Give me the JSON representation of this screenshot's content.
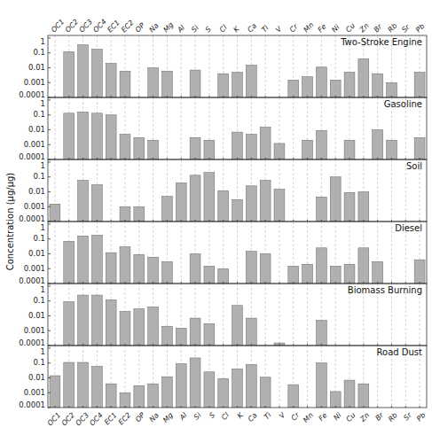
{
  "chart_data": [
    {
      "type": "bar",
      "title": "Two-Stroke Engine",
      "ylabel": "Concentration (μg/μg)",
      "categories": [
        "OC1",
        "OC2",
        "OC3",
        "OC4",
        "EC1",
        "EC2",
        "OP",
        "Na",
        "Mg",
        "Al",
        "Si",
        "S",
        "Cl",
        "K",
        "Ca",
        "Ti",
        "V",
        "Cr",
        "Mn",
        "Fe",
        "Ni",
        "Cu",
        "Zn",
        "Br",
        "Rb",
        "Sr",
        "Pb"
      ],
      "values": [
        null,
        0.12,
        0.35,
        0.18,
        0.02,
        0.006,
        null,
        0.01,
        0.006,
        null,
        0.007,
        null,
        0.004,
        0.005,
        0.015,
        null,
        null,
        0.0015,
        0.0025,
        0.011,
        0.0015,
        0.005,
        0.04,
        0.004,
        0.001,
        null,
        0.005
      ],
      "color": "#B0B0B0",
      "log": "y",
      "ylim": [
        0.0001,
        1.5
      ],
      "yticks": [
        0.0001,
        0.001,
        0.01,
        0.1,
        1
      ],
      "grid": true
    },
    {
      "type": "bar",
      "title": "Gasoline",
      "categories": [
        "OC1",
        "OC2",
        "OC3",
        "OC4",
        "EC1",
        "EC2",
        "OP",
        "Na",
        "Mg",
        "Al",
        "Si",
        "S",
        "Cl",
        "K",
        "Ca",
        "Ti",
        "V",
        "Cr",
        "Mn",
        "Fe",
        "Ni",
        "Cu",
        "Zn",
        "Br",
        "Rb",
        "Sr",
        "Pb"
      ],
      "values": [
        null,
        0.13,
        0.16,
        0.13,
        0.1,
        0.005,
        0.003,
        0.002,
        null,
        null,
        0.003,
        0.002,
        null,
        0.007,
        0.005,
        0.015,
        0.0012,
        null,
        0.002,
        0.009,
        null,
        0.002,
        null,
        0.01,
        0.002,
        null,
        0.003
      ],
      "color": "#B0B0B0",
      "log": "y",
      "ylim": [
        0.0001,
        1.5
      ],
      "yticks": [
        0.0001,
        0.001,
        0.01,
        0.1,
        1
      ],
      "grid": true,
      "tick_labels": "y"
    },
    {
      "type": "bar",
      "title": "Soil",
      "categories": [
        "OC1",
        "OC2",
        "OC3",
        "OC4",
        "EC1",
        "EC2",
        "OP",
        "Na",
        "Mg",
        "Al",
        "Si",
        "S",
        "Cl",
        "K",
        "Ca",
        "Ti",
        "V",
        "Cr",
        "Mn",
        "Fe",
        "Ni",
        "Cu",
        "Zn",
        "Br",
        "Rb",
        "Sr",
        "Pb"
      ],
      "values": [
        0.0015,
        null,
        0.06,
        0.03,
        null,
        0.001,
        0.001,
        null,
        0.005,
        0.04,
        0.13,
        0.2,
        0.012,
        0.003,
        0.025,
        0.06,
        0.015,
        null,
        null,
        0.0045,
        0.1,
        0.009,
        0.01,
        null,
        null,
        null,
        null
      ],
      "color": "#B0B0B0",
      "log": "y",
      "ylim": [
        0.0001,
        1.5
      ],
      "yticks": [
        0.0001,
        0.001,
        0.01,
        0.1,
        1
      ],
      "grid": true,
      "tick_labels": "y"
    },
    {
      "type": "bar",
      "title": "Diesel",
      "categories": [
        "OC1",
        "OC2",
        "OC3",
        "OC4",
        "EC1",
        "EC2",
        "OP",
        "Na",
        "Mg",
        "Al",
        "Si",
        "S",
        "Cl",
        "K",
        "Ca",
        "Ti",
        "V",
        "Cr",
        "Mn",
        "Fe",
        "Ni",
        "Cu",
        "Zn",
        "Br",
        "Rb",
        "Sr",
        "Pb"
      ],
      "values": [
        null,
        0.07,
        0.16,
        0.18,
        0.012,
        0.03,
        0.009,
        0.006,
        0.003,
        null,
        0.01,
        0.0015,
        0.001,
        null,
        0.015,
        0.01,
        null,
        0.0015,
        0.002,
        0.025,
        0.0015,
        0.002,
        0.025,
        0.003,
        null,
        null,
        0.004
      ],
      "color": "#B0B0B0",
      "log": "y",
      "ylim": [
        0.0001,
        1.5
      ],
      "yticks": [
        0.0001,
        0.001,
        0.01,
        0.1,
        1
      ],
      "grid": true,
      "tick_labels": "y"
    },
    {
      "type": "bar",
      "title": "Biomass Burning",
      "categories": [
        "OC1",
        "OC2",
        "OC3",
        "OC4",
        "EC1",
        "EC2",
        "OP",
        "Na",
        "Mg",
        "Al",
        "Si",
        "S",
        "Cl",
        "K",
        "Ca",
        "Ti",
        "V",
        "Cr",
        "Mn",
        "Fe",
        "Ni",
        "Cu",
        "Zn",
        "Br",
        "Rb",
        "Sr",
        "Pb"
      ],
      "values": [
        null,
        0.09,
        0.25,
        0.25,
        0.12,
        0.02,
        0.03,
        0.04,
        0.002,
        0.0015,
        0.007,
        0.003,
        null,
        0.05,
        0.007,
        null,
        0.00015,
        null,
        null,
        0.005,
        null,
        null,
        null,
        null,
        null,
        null,
        null
      ],
      "color": "#B0B0B0",
      "log": "y",
      "ylim": [
        0.0001,
        1.5
      ],
      "yticks": [
        0.0001,
        0.001,
        0.01,
        0.1,
        1
      ],
      "grid": true,
      "tick_labels": "y"
    },
    {
      "type": "bar",
      "title": "Road Dust",
      "categories": [
        "OC1",
        "OC2",
        "OC3",
        "OC4",
        "EC1",
        "EC2",
        "OP",
        "Na",
        "Mg",
        "Al",
        "Si",
        "S",
        "Cl",
        "K",
        "Ca",
        "Ti",
        "V",
        "Cr",
        "Mn",
        "Fe",
        "Ni",
        "Cu",
        "Zn",
        "Br",
        "Rb",
        "Sr",
        "Pb"
      ],
      "values": [
        0.014,
        0.11,
        0.11,
        0.06,
        0.004,
        0.001,
        0.003,
        0.004,
        0.012,
        0.09,
        0.22,
        0.025,
        0.009,
        0.04,
        0.08,
        0.011,
        null,
        0.0035,
        null,
        0.1,
        0.0012,
        0.007,
        0.004,
        null,
        null,
        null,
        null
      ],
      "color": "#B0B0B0",
      "log": "y",
      "ylim": [
        0.0001,
        1.5
      ],
      "yticks": [
        0.0001,
        0.001,
        0.01,
        0.1,
        1
      ],
      "grid": true
    }
  ]
}
